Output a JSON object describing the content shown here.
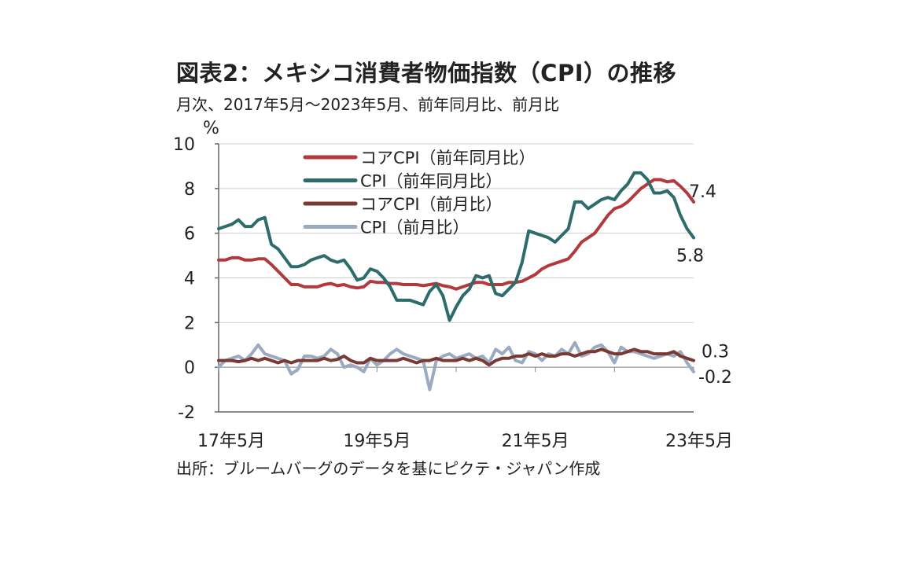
{
  "title": "図表2：メキシコ消費者物価指数（CPI）の推移",
  "subtitle": "月次、2017年5月～2023年5月、前年同月比、前月比",
  "source": "出所：ブルームバーグのデータを基にピクテ・ジャパン作成",
  "chart_data": {
    "type": "line",
    "ylabel": "%",
    "ylim": [
      -2,
      10
    ],
    "yticks": [
      -2,
      0,
      2,
      4,
      6,
      8,
      10
    ],
    "xlim": [
      0,
      72
    ],
    "xticks": [
      {
        "label": "17年5月",
        "index": 0
      },
      {
        "label": "19年5月",
        "index": 24
      },
      {
        "label": "21年5月",
        "index": 48
      },
      {
        "label": "23年5月",
        "index": 72
      }
    ],
    "grid": "horizontal",
    "legend_position": "top-center",
    "end_labels": [
      {
        "series": "コアCPI（前年同月比）",
        "text": "7.4"
      },
      {
        "series": "CPI（前年同月比）",
        "text": "5.8"
      },
      {
        "series": "コアCPI（前月比）",
        "text": "0.3"
      },
      {
        "series": "CPI（前月比）",
        "text": "-0.2"
      }
    ],
    "series": [
      {
        "name": "コアCPI（前年同月比）",
        "color": "#b2393e",
        "values": [
          4.8,
          4.8,
          4.9,
          4.9,
          4.8,
          4.8,
          4.85,
          4.85,
          4.6,
          4.3,
          4.0,
          3.7,
          3.7,
          3.6,
          3.6,
          3.6,
          3.7,
          3.75,
          3.65,
          3.7,
          3.6,
          3.55,
          3.6,
          3.85,
          3.8,
          3.8,
          3.75,
          3.75,
          3.7,
          3.7,
          3.7,
          3.65,
          3.7,
          3.75,
          3.65,
          3.6,
          3.5,
          3.6,
          3.7,
          3.8,
          3.8,
          3.7,
          3.7,
          3.7,
          3.8,
          3.8,
          3.85,
          4.0,
          4.15,
          4.4,
          4.55,
          4.65,
          4.75,
          4.85,
          5.2,
          5.6,
          5.8,
          6.0,
          6.4,
          6.8,
          7.1,
          7.2,
          7.4,
          7.7,
          8.0,
          8.2,
          8.4,
          8.4,
          8.3,
          8.35,
          8.1,
          7.8,
          7.4
        ]
      },
      {
        "name": "CPI（前年同月比）",
        "color": "#2e6b6b",
        "values": [
          6.2,
          6.3,
          6.4,
          6.6,
          6.3,
          6.3,
          6.6,
          6.7,
          5.5,
          5.3,
          4.9,
          4.5,
          4.5,
          4.6,
          4.8,
          4.9,
          5.0,
          4.8,
          4.7,
          4.8,
          4.4,
          3.9,
          4.0,
          4.4,
          4.3,
          4.0,
          3.6,
          3.0,
          3.0,
          3.0,
          2.9,
          2.8,
          3.4,
          3.7,
          3.2,
          2.1,
          2.7,
          3.2,
          3.5,
          4.1,
          4.0,
          4.1,
          3.3,
          3.2,
          3.5,
          3.8,
          4.7,
          6.1,
          6.0,
          5.9,
          5.8,
          5.6,
          5.9,
          6.2,
          7.4,
          7.4,
          7.1,
          7.3,
          7.5,
          7.6,
          7.5,
          7.9,
          8.2,
          8.7,
          8.7,
          8.4,
          7.8,
          7.8,
          7.9,
          7.6,
          6.8,
          6.2,
          5.8
        ]
      },
      {
        "name": "コアCPI（前月比）",
        "color": "#7a3a33",
        "values": [
          0.3,
          0.3,
          0.3,
          0.25,
          0.3,
          0.4,
          0.3,
          0.4,
          0.3,
          0.2,
          0.3,
          0.2,
          0.3,
          0.3,
          0.3,
          0.3,
          0.4,
          0.3,
          0.35,
          0.5,
          0.3,
          0.2,
          0.2,
          0.4,
          0.3,
          0.3,
          0.3,
          0.3,
          0.4,
          0.3,
          0.2,
          0.3,
          0.3,
          0.4,
          0.3,
          0.3,
          0.3,
          0.4,
          0.3,
          0.4,
          0.3,
          0.1,
          0.3,
          0.4,
          0.4,
          0.5,
          0.5,
          0.6,
          0.5,
          0.6,
          0.5,
          0.5,
          0.6,
          0.6,
          0.5,
          0.6,
          0.7,
          0.7,
          0.8,
          0.7,
          0.6,
          0.6,
          0.7,
          0.8,
          0.7,
          0.7,
          0.6,
          0.6,
          0.6,
          0.7,
          0.5,
          0.4,
          0.3
        ]
      },
      {
        "name": "CPI（前月比）",
        "color": "#9aaac0",
        "values": [
          0.0,
          0.3,
          0.4,
          0.5,
          0.3,
          0.6,
          1.0,
          0.6,
          0.5,
          0.4,
          0.3,
          -0.3,
          -0.1,
          0.5,
          0.5,
          0.4,
          0.5,
          0.8,
          0.6,
          0.0,
          0.1,
          0.0,
          -0.2,
          0.4,
          0.1,
          0.3,
          0.6,
          0.8,
          0.6,
          0.5,
          0.4,
          0.3,
          -1.0,
          0.3,
          0.5,
          0.6,
          0.4,
          0.5,
          0.6,
          0.4,
          0.5,
          0.2,
          0.8,
          0.6,
          0.9,
          0.3,
          0.2,
          0.7,
          0.6,
          0.3,
          0.6,
          0.5,
          0.8,
          0.6,
          1.1,
          0.5,
          0.6,
          0.9,
          1.0,
          0.7,
          0.2,
          0.9,
          0.7,
          0.7,
          0.6,
          0.5,
          0.4,
          0.5,
          0.6,
          0.5,
          0.7,
          0.2,
          -0.2
        ]
      }
    ]
  }
}
